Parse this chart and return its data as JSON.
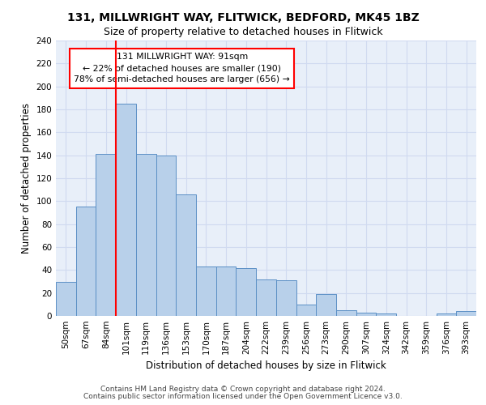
{
  "title1": "131, MILLWRIGHT WAY, FLITWICK, BEDFORD, MK45 1BZ",
  "title2": "Size of property relative to detached houses in Flitwick",
  "xlabel": "Distribution of detached houses by size in Flitwick",
  "ylabel": "Number of detached properties",
  "categories": [
    "50sqm",
    "67sqm",
    "84sqm",
    "101sqm",
    "119sqm",
    "136sqm",
    "153sqm",
    "170sqm",
    "187sqm",
    "204sqm",
    "222sqm",
    "239sqm",
    "256sqm",
    "273sqm",
    "290sqm",
    "307sqm",
    "324sqm",
    "342sqm",
    "359sqm",
    "376sqm",
    "393sqm"
  ],
  "values": [
    30,
    95,
    141,
    185,
    141,
    140,
    106,
    43,
    43,
    42,
    32,
    31,
    10,
    19,
    5,
    3,
    2,
    0,
    0,
    2,
    4
  ],
  "bar_color": "#b8d0ea",
  "bar_edge_color": "#5b8fc5",
  "red_line_x": 2.5,
  "annotation_text": "131 MILLWRIGHT WAY: 91sqm\n← 22% of detached houses are smaller (190)\n78% of semi-detached houses are larger (656) →",
  "annotation_box_color": "white",
  "annotation_box_edge": "red",
  "ylim": [
    0,
    240
  ],
  "yticks": [
    0,
    20,
    40,
    60,
    80,
    100,
    120,
    140,
    160,
    180,
    200,
    220,
    240
  ],
  "footer1": "Contains HM Land Registry data © Crown copyright and database right 2024.",
  "footer2": "Contains public sector information licensed under the Open Government Licence v3.0.",
  "background_color": "#e8eff9",
  "grid_color": "#d0daf0"
}
